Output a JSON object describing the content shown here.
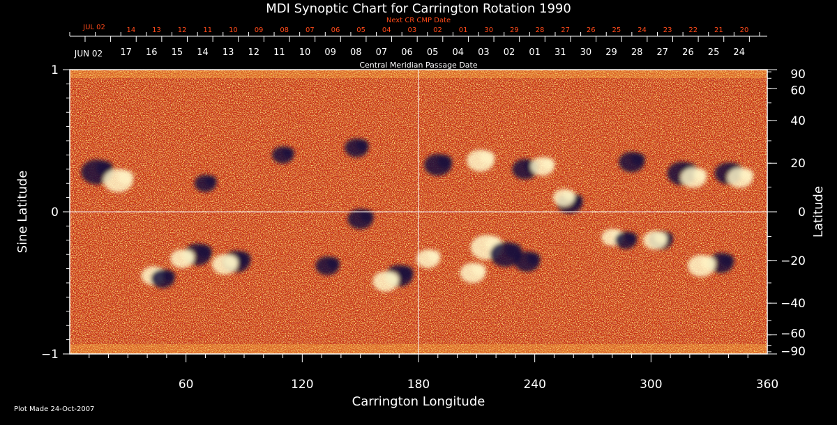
{
  "chart_data": {
    "type": "heatmap",
    "title": "MDI Synoptic Chart for Carrington Rotation 1990",
    "xlabel": "Carrington Longitude",
    "ylabel_left": "Sine Latitude",
    "ylabel_right": "Latitude",
    "xlim": [
      0,
      360
    ],
    "ylim": [
      -1,
      1
    ],
    "x_ticks": [
      60,
      120,
      180,
      240,
      300,
      360
    ],
    "y_ticks_left": [
      "1",
      "0",
      "−1"
    ],
    "y_ticks_right": [
      "90",
      "60",
      "40",
      "20",
      "0",
      "−20",
      "−40",
      "−60",
      "−90"
    ],
    "grid": "lines at longitude 180 and sine latitude 0",
    "colors": {
      "background": "#000000",
      "plot_base": "#c8300a",
      "negative_polarity": "#14103c",
      "positive_polarity": "#fff6c8",
      "axes": "#ffffff",
      "top_scale_text": "#ff4a1a"
    },
    "top_scale": {
      "next_cr_label": "Next CR CMP Date",
      "next_cr_start": "JUL 02",
      "next_cr_dates": [
        "14",
        "13",
        "12",
        "11",
        "10",
        "09",
        "08",
        "07",
        "06",
        "05",
        "04",
        "03",
        "02",
        "01",
        "30",
        "29",
        "28",
        "27",
        "26",
        "25",
        "24",
        "23",
        "22",
        "21",
        "20"
      ],
      "cmp_label": "Central Meridian Passage Date",
      "cmp_start": "JUN 02",
      "cmp_dates": [
        "17",
        "16",
        "15",
        "14",
        "13",
        "12",
        "11",
        "10",
        "09",
        "08",
        "07",
        "06",
        "05",
        "04",
        "03",
        "02",
        "01",
        "31",
        "30",
        "29",
        "28",
        "27",
        "26",
        "25",
        "24"
      ]
    },
    "active_regions": [
      {
        "lon": 14,
        "sinlat": 0.28,
        "polarity": "negative",
        "strength": 0.9
      },
      {
        "lon": 25,
        "sinlat": 0.22,
        "polarity": "positive",
        "strength": 0.8
      },
      {
        "lon": 150,
        "sinlat": -0.05,
        "polarity": "negative",
        "strength": 0.6
      },
      {
        "lon": 170,
        "sinlat": -0.45,
        "polarity": "negative",
        "strength": 0.7
      },
      {
        "lon": 163,
        "sinlat": -0.49,
        "polarity": "positive",
        "strength": 0.6
      },
      {
        "lon": 190,
        "sinlat": 0.33,
        "polarity": "negative",
        "strength": 0.7
      },
      {
        "lon": 212,
        "sinlat": 0.36,
        "polarity": "positive",
        "strength": 0.7
      },
      {
        "lon": 235,
        "sinlat": 0.3,
        "polarity": "negative",
        "strength": 0.6
      },
      {
        "lon": 244,
        "sinlat": 0.32,
        "polarity": "positive",
        "strength": 0.5
      },
      {
        "lon": 215,
        "sinlat": -0.25,
        "polarity": "positive",
        "strength": 0.9
      },
      {
        "lon": 225,
        "sinlat": -0.3,
        "polarity": "negative",
        "strength": 0.9
      },
      {
        "lon": 208,
        "sinlat": -0.43,
        "polarity": "positive",
        "strength": 0.6
      },
      {
        "lon": 236,
        "sinlat": -0.35,
        "polarity": "negative",
        "strength": 0.6
      },
      {
        "lon": 258,
        "sinlat": 0.06,
        "polarity": "negative",
        "strength": 0.6
      },
      {
        "lon": 255,
        "sinlat": 0.1,
        "polarity": "positive",
        "strength": 0.4
      },
      {
        "lon": 290,
        "sinlat": 0.35,
        "polarity": "negative",
        "strength": 0.6
      },
      {
        "lon": 316,
        "sinlat": 0.27,
        "polarity": "negative",
        "strength": 0.8
      },
      {
        "lon": 322,
        "sinlat": 0.24,
        "polarity": "positive",
        "strength": 0.6
      },
      {
        "lon": 340,
        "sinlat": 0.27,
        "polarity": "negative",
        "strength": 0.7
      },
      {
        "lon": 346,
        "sinlat": 0.24,
        "polarity": "positive",
        "strength": 0.6
      },
      {
        "lon": 66,
        "sinlat": -0.3,
        "polarity": "negative",
        "strength": 0.7
      },
      {
        "lon": 58,
        "sinlat": -0.33,
        "polarity": "positive",
        "strength": 0.5
      },
      {
        "lon": 86,
        "sinlat": -0.35,
        "polarity": "negative",
        "strength": 0.7
      },
      {
        "lon": 80,
        "sinlat": -0.37,
        "polarity": "positive",
        "strength": 0.6
      },
      {
        "lon": 43,
        "sinlat": -0.45,
        "polarity": "positive",
        "strength": 0.5
      },
      {
        "lon": 48,
        "sinlat": -0.47,
        "polarity": "negative",
        "strength": 0.5
      },
      {
        "lon": 110,
        "sinlat": 0.4,
        "polarity": "negative",
        "strength": 0.4
      },
      {
        "lon": 148,
        "sinlat": 0.45,
        "polarity": "negative",
        "strength": 0.5
      },
      {
        "lon": 70,
        "sinlat": 0.2,
        "polarity": "negative",
        "strength": 0.4
      },
      {
        "lon": 336,
        "sinlat": -0.36,
        "polarity": "negative",
        "strength": 0.6
      },
      {
        "lon": 326,
        "sinlat": -0.38,
        "polarity": "positive",
        "strength": 0.7
      },
      {
        "lon": 305,
        "sinlat": -0.2,
        "polarity": "negative",
        "strength": 0.5
      },
      {
        "lon": 302,
        "sinlat": -0.2,
        "polarity": "positive",
        "strength": 0.5
      },
      {
        "lon": 280,
        "sinlat": -0.18,
        "polarity": "positive",
        "strength": 0.4
      },
      {
        "lon": 287,
        "sinlat": -0.2,
        "polarity": "negative",
        "strength": 0.4
      },
      {
        "lon": 133,
        "sinlat": -0.38,
        "polarity": "negative",
        "strength": 0.5
      },
      {
        "lon": 185,
        "sinlat": -0.33,
        "polarity": "positive",
        "strength": 0.5
      }
    ]
  },
  "footer": {
    "plot_made": "Plot Made 24-Oct-2007"
  }
}
